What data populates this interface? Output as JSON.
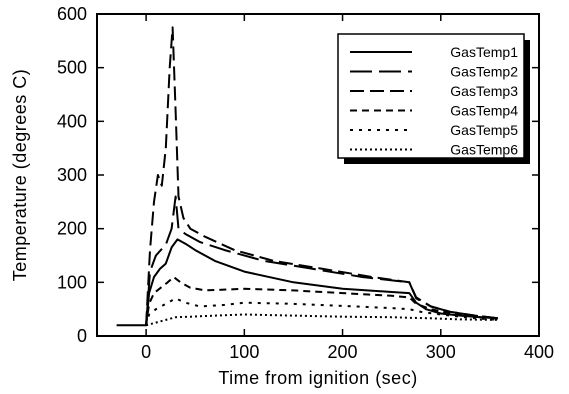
{
  "chart_data": {
    "type": "line",
    "xlabel": "Time from ignition (sec)",
    "ylabel": "Temperature (degrees C)",
    "xlim": [
      -50,
      400
    ],
    "ylim": [
      0,
      600
    ],
    "xticks": [
      0,
      100,
      200,
      300,
      400
    ],
    "yticks": [
      0,
      100,
      200,
      300,
      400,
      500,
      600
    ],
    "legend_position": "top-right",
    "grid": false,
    "series": [
      {
        "name": "GasTemp1",
        "dash": "solid",
        "points": [
          [
            -30,
            20
          ],
          [
            0,
            20
          ],
          [
            3,
            80
          ],
          [
            8,
            110
          ],
          [
            14,
            125
          ],
          [
            20,
            135
          ],
          [
            26,
            165
          ],
          [
            32,
            180
          ],
          [
            40,
            172
          ],
          [
            50,
            160
          ],
          [
            70,
            140
          ],
          [
            100,
            120
          ],
          [
            150,
            100
          ],
          [
            200,
            88
          ],
          [
            250,
            82
          ],
          [
            268,
            80
          ],
          [
            275,
            62
          ],
          [
            285,
            50
          ],
          [
            300,
            42
          ],
          [
            320,
            38
          ],
          [
            340,
            35
          ],
          [
            358,
            33
          ]
        ]
      },
      {
        "name": "GasTemp2",
        "dash": "longdash",
        "points": [
          [
            0,
            20
          ],
          [
            4,
            120
          ],
          [
            10,
            150
          ],
          [
            15,
            160
          ],
          [
            20,
            170
          ],
          [
            26,
            200
          ],
          [
            30,
            260
          ],
          [
            33,
            200
          ],
          [
            40,
            190
          ],
          [
            55,
            175
          ],
          [
            80,
            160
          ],
          [
            120,
            140
          ],
          [
            170,
            125
          ],
          [
            220,
            110
          ],
          [
            268,
            100
          ],
          [
            275,
            70
          ],
          [
            290,
            55
          ],
          [
            310,
            45
          ],
          [
            335,
            38
          ],
          [
            358,
            33
          ]
        ]
      },
      {
        "name": "GasTemp3",
        "dash": "dash",
        "points": [
          [
            0,
            20
          ],
          [
            4,
            160
          ],
          [
            8,
            250
          ],
          [
            12,
            300
          ],
          [
            16,
            280
          ],
          [
            20,
            350
          ],
          [
            24,
            500
          ],
          [
            27,
            575
          ],
          [
            30,
            420
          ],
          [
            33,
            260
          ],
          [
            38,
            220
          ],
          [
            45,
            200
          ],
          [
            60,
            185
          ],
          [
            90,
            160
          ],
          [
            130,
            140
          ],
          [
            180,
            125
          ],
          [
            230,
            110
          ],
          [
            268,
            100
          ],
          [
            275,
            72
          ],
          [
            290,
            55
          ],
          [
            310,
            45
          ],
          [
            335,
            38
          ],
          [
            358,
            33
          ]
        ]
      },
      {
        "name": "GasTemp4",
        "dash": "medium",
        "points": [
          [
            0,
            20
          ],
          [
            3,
            60
          ],
          [
            8,
            80
          ],
          [
            15,
            90
          ],
          [
            22,
            100
          ],
          [
            28,
            110
          ],
          [
            35,
            100
          ],
          [
            45,
            90
          ],
          [
            60,
            85
          ],
          [
            100,
            88
          ],
          [
            150,
            85
          ],
          [
            200,
            80
          ],
          [
            250,
            75
          ],
          [
            268,
            72
          ],
          [
            275,
            60
          ],
          [
            290,
            50
          ],
          [
            310,
            42
          ],
          [
            335,
            36
          ],
          [
            358,
            32
          ]
        ]
      },
      {
        "name": "GasTemp5",
        "dash": "dot",
        "points": [
          [
            0,
            20
          ],
          [
            3,
            40
          ],
          [
            10,
            50
          ],
          [
            20,
            60
          ],
          [
            30,
            70
          ],
          [
            40,
            62
          ],
          [
            55,
            55
          ],
          [
            80,
            58
          ],
          [
            100,
            62
          ],
          [
            150,
            60
          ],
          [
            200,
            56
          ],
          [
            250,
            52
          ],
          [
            268,
            50
          ],
          [
            280,
            45
          ],
          [
            300,
            40
          ],
          [
            330,
            34
          ],
          [
            358,
            30
          ]
        ]
      },
      {
        "name": "GasTemp6",
        "dash": "densedot",
        "points": [
          [
            0,
            20
          ],
          [
            10,
            25
          ],
          [
            20,
            30
          ],
          [
            30,
            35
          ],
          [
            45,
            36
          ],
          [
            70,
            38
          ],
          [
            100,
            40
          ],
          [
            150,
            38
          ],
          [
            200,
            36
          ],
          [
            250,
            35
          ],
          [
            268,
            34
          ],
          [
            290,
            33
          ],
          [
            320,
            31
          ],
          [
            358,
            30
          ]
        ]
      }
    ]
  }
}
